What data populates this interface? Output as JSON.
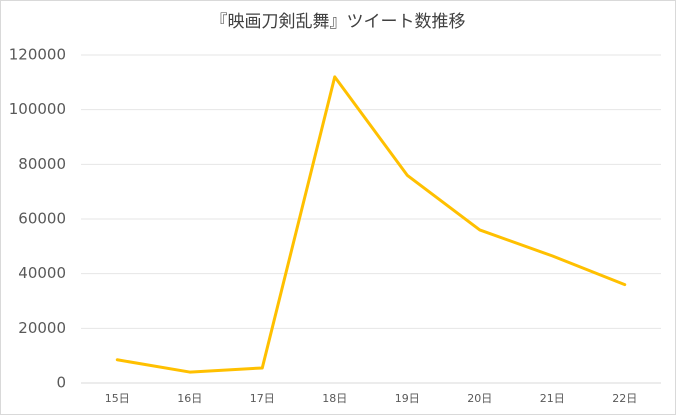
{
  "chart_data": {
    "type": "line",
    "title": "『映画刀剣乱舞』ツイート数推移",
    "categories": [
      "15日",
      "16日",
      "17日",
      "18日",
      "19日",
      "20日",
      "21日",
      "22日"
    ],
    "values": [
      8500,
      4000,
      5500,
      112000,
      76000,
      56000,
      46500,
      36000
    ],
    "color": "#ffc000",
    "ylim": [
      0,
      120000
    ],
    "yticks": [
      0,
      20000,
      40000,
      60000,
      80000,
      100000,
      120000
    ],
    "grid": true
  }
}
